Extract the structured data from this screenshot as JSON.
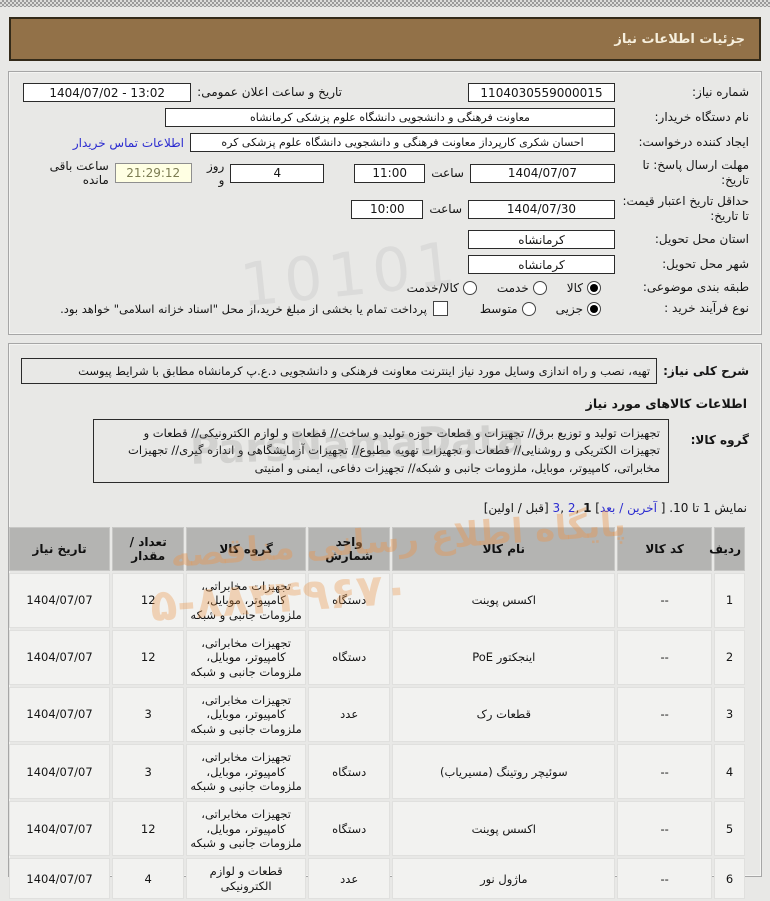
{
  "title_bar": {
    "text": "جزئیات اطلاعات نیاز"
  },
  "form": {
    "need_number": {
      "label": "شماره نیاز:",
      "value": "1104030559000015"
    },
    "announce": {
      "label": "تاریخ و ساعت اعلان عمومی:",
      "value": "1404/07/02 - 13:02"
    },
    "buyer_org": {
      "label": "نام دستگاه خریدار:",
      "value": "معاونت فرهنگی و دانشجویی دانشگاه علوم پزشکی کرمانشاه"
    },
    "creator": {
      "label": "ایجاد کننده درخواست:",
      "value": "احسان شکری کارپرداز معاونت فرهنگی و دانشجویی دانشگاه علوم پزشکی کره",
      "link": "اطلاعات تماس خریدار"
    },
    "reply_deadline": {
      "label": "مهلت ارسال پاسخ: تا تاریخ:",
      "date": "1404/07/07",
      "hour_label": "ساعت",
      "hour": "11:00",
      "days": "4",
      "days_suffix": "روز و",
      "countdown": "21:29:12",
      "remaining_label": "ساعت باقی مانده"
    },
    "price_validity": {
      "label": "حداقل تاریخ اعتبار قیمت: تا تاریخ:",
      "date": "1404/07/30",
      "hour_label": "ساعت",
      "hour": "10:00"
    },
    "province": {
      "label": "استان محل تحویل:",
      "value": "کرمانشاه"
    },
    "city": {
      "label": "شهر محل تحویل:",
      "value": "کرمانشاه"
    },
    "classification": {
      "label": "طبقه بندی موضوعی:",
      "options": [
        "کالا",
        "خدمت",
        "کالا/خدمت"
      ],
      "selected": "کالا"
    },
    "process": {
      "label": "نوع فرآیند خرید :",
      "options": [
        "جزیی",
        "متوسط"
      ],
      "selected": "جزیی",
      "checkbox_label": "پرداخت تمام یا بخشی از مبلغ خرید،از محل \"اسناد خزانه اسلامی\" خواهد بود.",
      "checkbox_checked": false
    }
  },
  "description": {
    "label": "شرح کلی نیاز:",
    "value": "تهیه، نصب و راه اندازی وسایل مورد نیاز اینترنت معاونت فرهنکی و دانشجویی د.ع.پ کرمانشاه مطابق با شرایط پیوست"
  },
  "goods_section": {
    "header": "اطلاعات کالاهای مورد نیاز",
    "group": {
      "label": "گروه کالا:",
      "value": "تجهیزات تولید و توزیع برق// تجهیزات و قطعات حوزه تولید و ساخت// قطعات و لوازم الکترونیکی// قطعات و تجهیزات الکتریکی و روشنایی// قطعات و تجهیزات تهویه مطبوع// تجهیزات آزمایشگاهی و اندازه گیری// تجهیزات مخابراتی، کامپیوتر، موبایل، ملزومات جانبی و شبکه// تجهیزات دفاعی، ایمنی و امنیتی"
    },
    "pagination": {
      "summary": "نمایش 1 تا 10.",
      "open_bracket": "[",
      "close_bracket": "]",
      "next_group": "آخرین / بعد",
      "current_page": "1",
      "page_links": [
        "2",
        "3"
      ],
      "comma": " ,",
      "prev_group": "[قبل / اولین]"
    },
    "table": {
      "headers": [
        "ردیف",
        "کد کالا",
        "نام کالا",
        "واحد شمارش",
        "گروه کالا",
        "تعداد / مقدار",
        "تاریخ نیاز"
      ],
      "rows": [
        {
          "row": "1",
          "code": "--",
          "name": "اکسس پوینت",
          "unit": "دستگاه",
          "group": "تجهیزات مخابراتی، کامپیوتر، موبایل، ملزومات جانبی و شبکه",
          "qty": "12",
          "date": "1404/07/07"
        },
        {
          "row": "2",
          "code": "--",
          "name": "اینجکتور PoE",
          "unit": "دستگاه",
          "group": "تجهیزات مخابراتی، کامپیوتر، موبایل، ملزومات جانبی و شبکه",
          "qty": "12",
          "date": "1404/07/07"
        },
        {
          "row": "3",
          "code": "--",
          "name": "قطعات رک",
          "unit": "عدد",
          "group": "تجهیزات مخابراتی، کامپیوتر، موبایل، ملزومات جانبی و شبکه",
          "qty": "3",
          "date": "1404/07/07"
        },
        {
          "row": "4",
          "code": "--",
          "name": "سوئیچر روتینگ (مسیریاب)",
          "unit": "دستگاه",
          "group": "تجهیزات مخابراتی، کامپیوتر، موبایل، ملزومات جانبی و شبکه",
          "qty": "3",
          "date": "1404/07/07"
        },
        {
          "row": "5",
          "code": "--",
          "name": "اکسس پوینت",
          "unit": "دستگاه",
          "group": "تجهیزات مخابراتی، کامپیوتر، موبایل، ملزومات جانبی و شبکه",
          "qty": "12",
          "date": "1404/07/07"
        },
        {
          "row": "6",
          "code": "--",
          "name": "ماژول نور",
          "unit": "عدد",
          "group": "قطعات و لوازم الکترونیکی",
          "qty": "4",
          "date": "1404/07/07"
        }
      ]
    }
  },
  "watermark": {
    "digits": "10101",
    "brand": "ParsNamaData",
    "line1": "پایگاه اطلاع رسانی مناقصه",
    "phone": "۵-۸۸۳۴۹۶۷۰"
  },
  "colors": {
    "title_bar_bg": "#927148",
    "link": "#2b2bd0",
    "table_header_bg": "#b4b4b2",
    "countdown_bg": "#ffffe3",
    "watermark_orange": "#eb9448"
  }
}
